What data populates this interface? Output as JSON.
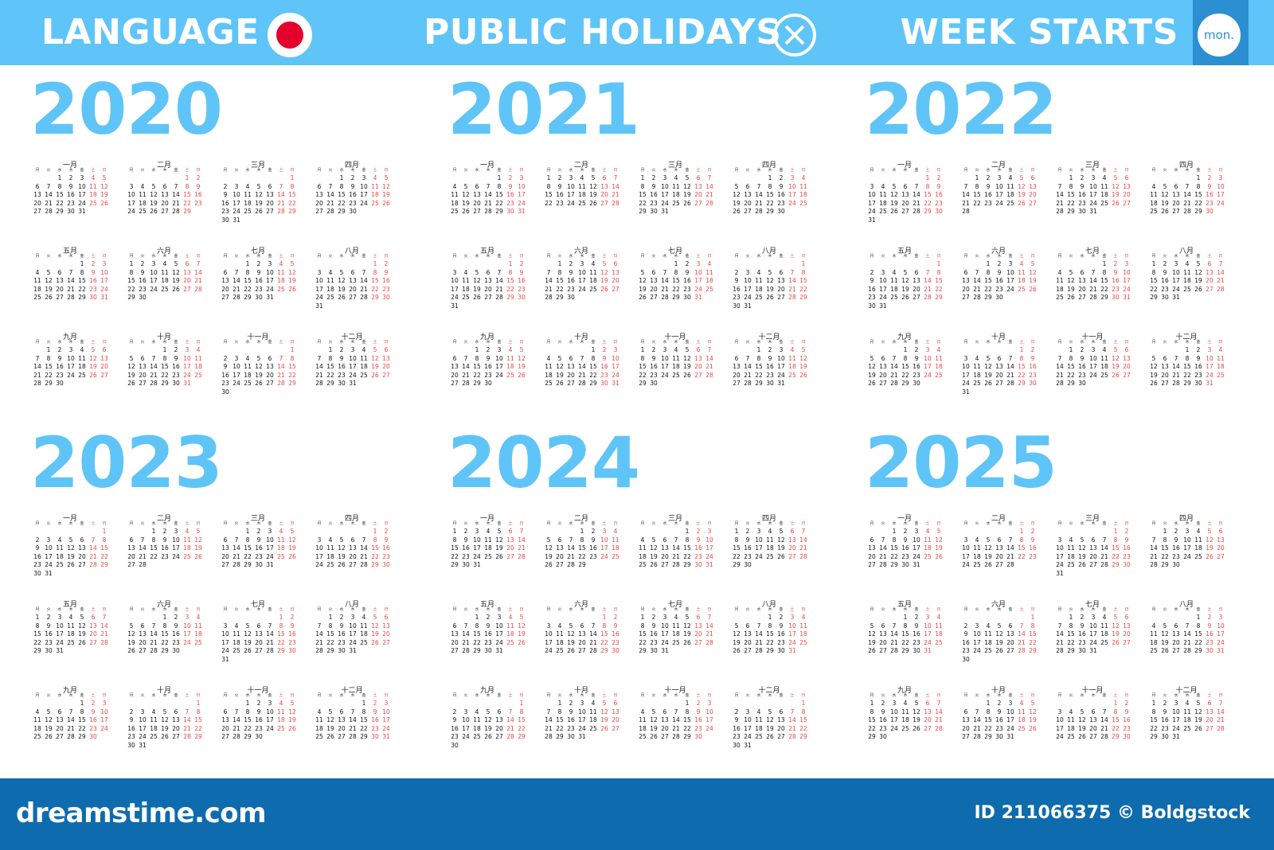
{
  "topbar": {
    "language_label": "LANGUAGE",
    "holidays_label": "PUBLIC HOLIDAYS",
    "week_label": "WEEK STARTS",
    "week_start_badge": "mon.",
    "language_flag_icon": "japan-flag-icon",
    "holidays_icon": "close-x-icon",
    "colors": {
      "bar": "#5fc4f8",
      "badge_box": "#2b8fd2",
      "flag_red": "#e4002b"
    }
  },
  "weekday_headers": [
    "月",
    "火",
    "水",
    "木",
    "金",
    "土",
    "日"
  ],
  "month_names": [
    "一月",
    "二月",
    "三月",
    "四月",
    "五月",
    "六月",
    "七月",
    "八月",
    "九月",
    "十月",
    "十一月",
    "十二月"
  ],
  "years": [
    "2020",
    "2021",
    "2022",
    "2023",
    "2024",
    "2025"
  ],
  "colors": {
    "year_text": "#5fc4f8",
    "weekend": "#e84545",
    "weekday": "#111111"
  },
  "footer": {
    "brand": "dreamstime.com",
    "image_id": "ID 211066375 © Boldgstock"
  }
}
